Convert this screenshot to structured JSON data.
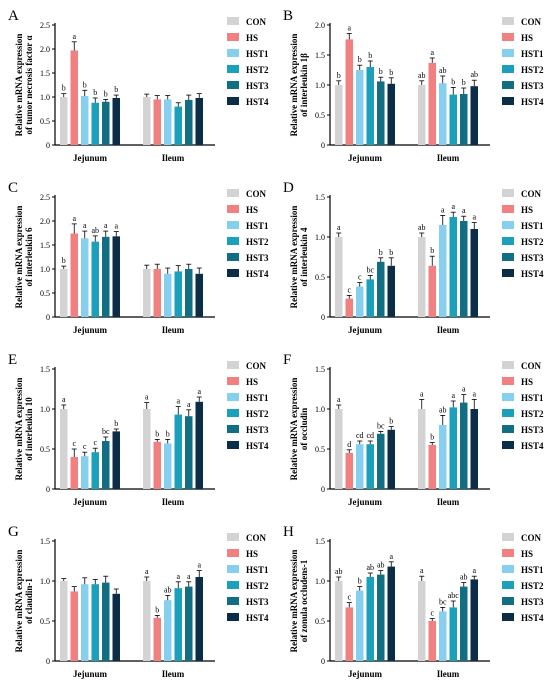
{
  "legend": [
    "CON",
    "HS",
    "HST1",
    "HST2",
    "HST3",
    "HST4"
  ],
  "colors": [
    "#d3d3d3",
    "#f28080",
    "#87cfee",
    "#1aa0bb",
    "#126e82",
    "#0c2d48"
  ],
  "chart_data": [
    {
      "type": "bar",
      "panel": "A",
      "ylabel": [
        "Relative mRNA expression",
        "of tumor necrosis factor α"
      ],
      "categories": [
        "Jejunum",
        "Ileum"
      ],
      "ylim": [
        0,
        2.5
      ],
      "yticks": [
        0,
        0.5,
        1.0,
        1.5,
        2.0,
        2.5
      ],
      "values": [
        [
          1.0,
          1.97,
          1.02,
          0.88,
          0.9,
          0.98
        ],
        [
          1.0,
          0.95,
          0.95,
          0.8,
          0.94,
          0.98
        ]
      ],
      "errors": [
        [
          0.07,
          0.18,
          0.12,
          0.1,
          0.05,
          0.06
        ],
        [
          0.06,
          0.08,
          0.08,
          0.08,
          0.1,
          0.09
        ]
      ],
      "letters": [
        [
          "b",
          "a",
          "b",
          "b",
          "b",
          "b"
        ],
        [
          "",
          "",
          "",
          "",
          "",
          ""
        ]
      ]
    },
    {
      "type": "bar",
      "panel": "B",
      "ylabel": [
        "Relative mRNA expression",
        "of interleukin 1β"
      ],
      "categories": [
        "Jejunum",
        "Ileum"
      ],
      "ylim": [
        0,
        2.0
      ],
      "yticks": [
        0,
        0.5,
        1.0,
        1.5,
        2.0
      ],
      "values": [
        [
          1.0,
          1.76,
          1.25,
          1.3,
          1.06,
          1.02
        ],
        [
          1.0,
          1.37,
          1.03,
          0.84,
          0.85,
          0.98
        ]
      ],
      "errors": [
        [
          0.07,
          0.1,
          0.08,
          0.1,
          0.07,
          0.1
        ],
        [
          0.07,
          0.08,
          0.12,
          0.12,
          0.1,
          0.1
        ]
      ],
      "letters": [
        [
          "b",
          "a",
          "b",
          "b",
          "b",
          "b"
        ],
        [
          "ab",
          "a",
          "ab",
          "b",
          "b",
          "ab"
        ]
      ]
    },
    {
      "type": "bar",
      "panel": "C",
      "ylabel": [
        "Relative mRNA expression",
        "of interleukin 6"
      ],
      "categories": [
        "Jejunum",
        "Ileum"
      ],
      "ylim": [
        0,
        2.5
      ],
      "yticks": [
        0,
        0.5,
        1.0,
        1.5,
        2.0,
        2.5
      ],
      "values": [
        [
          1.0,
          1.74,
          1.64,
          1.57,
          1.67,
          1.68
        ],
        [
          1.0,
          1.0,
          0.9,
          0.95,
          1.0,
          0.9
        ]
      ],
      "errors": [
        [
          0.06,
          0.2,
          0.15,
          0.12,
          0.12,
          0.1
        ],
        [
          0.08,
          0.1,
          0.12,
          0.12,
          0.1,
          0.12
        ]
      ],
      "letters": [
        [
          "b",
          "a",
          "a",
          "ab",
          "a",
          "a"
        ],
        [
          "",
          "",
          "",
          "",
          "",
          ""
        ]
      ]
    },
    {
      "type": "bar",
      "panel": "D",
      "ylabel": [
        "Relative mRNA expression",
        "of interleukin 4"
      ],
      "categories": [
        "Jejunum",
        "Ileum"
      ],
      "ylim": [
        0,
        1.5
      ],
      "yticks": [
        0,
        0.5,
        1.0,
        1.5
      ],
      "values": [
        [
          1.0,
          0.23,
          0.38,
          0.47,
          0.69,
          0.64
        ],
        [
          1.0,
          0.64,
          1.15,
          1.25,
          1.2,
          1.1
        ]
      ],
      "errors": [
        [
          0.05,
          0.04,
          0.05,
          0.05,
          0.05,
          0.1
        ],
        [
          0.05,
          0.12,
          0.12,
          0.06,
          0.06,
          0.08
        ]
      ],
      "letters": [
        [
          "a",
          "c",
          "c",
          "bc",
          "b",
          "b"
        ],
        [
          "ab",
          "b",
          "a",
          "a",
          "a",
          "a"
        ]
      ]
    },
    {
      "type": "bar",
      "panel": "E",
      "ylabel": [
        "Relative mRNA expression",
        "of interleukin 10"
      ],
      "categories": [
        "Jejunum",
        "Ileum"
      ],
      "ylim": [
        0,
        1.5
      ],
      "yticks": [
        0,
        0.5,
        1.0,
        1.5
      ],
      "values": [
        [
          1.0,
          0.4,
          0.41,
          0.46,
          0.6,
          0.72
        ],
        [
          1.0,
          0.59,
          0.57,
          0.93,
          0.91,
          1.09
        ]
      ],
      "errors": [
        [
          0.05,
          0.1,
          0.05,
          0.05,
          0.05,
          0.03
        ],
        [
          0.08,
          0.03,
          0.05,
          0.1,
          0.08,
          0.06
        ]
      ],
      "letters": [
        [
          "a",
          "c",
          "c",
          "c",
          "bc",
          "b"
        ],
        [
          "a",
          "b",
          "b",
          "a",
          "a",
          "a"
        ]
      ]
    },
    {
      "type": "bar",
      "panel": "F",
      "ylabel": [
        "Relative mRNA expression",
        "of occludin"
      ],
      "categories": [
        "Jejunum",
        "Ileum"
      ],
      "ylim": [
        0,
        1.5
      ],
      "yticks": [
        0,
        0.5,
        1.0,
        1.5
      ],
      "values": [
        [
          1.0,
          0.45,
          0.56,
          0.56,
          0.69,
          0.74
        ],
        [
          1.0,
          0.55,
          0.8,
          1.02,
          1.08,
          1.0
        ]
      ],
      "errors": [
        [
          0.05,
          0.04,
          0.04,
          0.04,
          0.03,
          0.04
        ],
        [
          0.12,
          0.03,
          0.12,
          0.08,
          0.1,
          0.12
        ]
      ],
      "letters": [
        [
          "a",
          "d",
          "cd",
          "cd",
          "bc",
          "b"
        ],
        [
          "a",
          "b",
          "ab",
          "a",
          "a",
          "a"
        ]
      ]
    },
    {
      "type": "bar",
      "panel": "G",
      "ylabel": [
        "Relative mRNA expression",
        "of claudin-1"
      ],
      "categories": [
        "Jejunum",
        "Ileum"
      ],
      "ylim": [
        0,
        1.5
      ],
      "yticks": [
        0,
        0.5,
        1.0,
        1.5
      ],
      "values": [
        [
          1.0,
          0.87,
          0.96,
          0.96,
          0.98,
          0.84
        ],
        [
          1.0,
          0.54,
          0.76,
          0.91,
          0.93,
          1.05
        ]
      ],
      "errors": [
        [
          0.03,
          0.06,
          0.08,
          0.06,
          0.08,
          0.06
        ],
        [
          0.05,
          0.03,
          0.06,
          0.08,
          0.06,
          0.08
        ]
      ],
      "letters": [
        [
          "",
          "",
          "",
          "",
          "",
          ""
        ],
        [
          "a",
          "b",
          "ab",
          "a",
          "a",
          "a"
        ]
      ]
    },
    {
      "type": "bar",
      "panel": "H",
      "ylabel": [
        "Relative mRNA expression",
        "of zonula occludens-1"
      ],
      "categories": [
        "Jejunum",
        "Ileum"
      ],
      "ylim": [
        0,
        1.5
      ],
      "yticks": [
        0,
        0.5,
        1.0,
        1.5
      ],
      "values": [
        [
          1.0,
          0.67,
          0.88,
          1.05,
          1.08,
          1.18
        ],
        [
          1.0,
          0.5,
          0.62,
          0.67,
          0.93,
          1.02
        ]
      ],
      "errors": [
        [
          0.05,
          0.06,
          0.05,
          0.05,
          0.05,
          0.06
        ],
        [
          0.06,
          0.03,
          0.05,
          0.08,
          0.05,
          0.04
        ]
      ],
      "letters": [
        [
          "ab",
          "c",
          "b",
          "ab",
          "ab",
          "a"
        ],
        [
          "a",
          "c",
          "bc",
          "abc",
          "ab",
          "a"
        ]
      ]
    }
  ]
}
